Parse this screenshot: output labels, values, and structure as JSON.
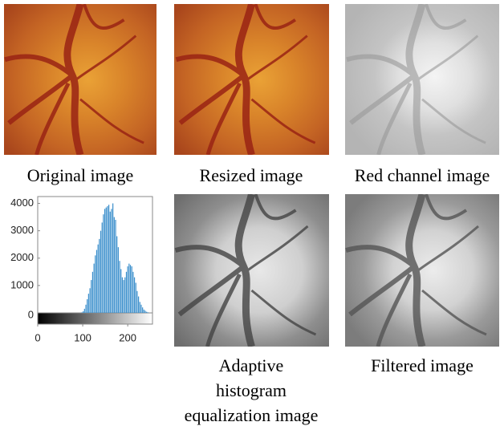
{
  "panels": [
    {
      "caption": "Original image"
    },
    {
      "caption": "Resized image"
    },
    {
      "caption": "Red channel image"
    },
    {
      "caption": [
        "Adaptive",
        "histogram",
        "equalization image"
      ]
    },
    {
      "caption": "Filtered image"
    }
  ],
  "chart_data": {
    "type": "stem",
    "x": [
      98,
      101,
      104,
      107,
      110,
      113,
      116,
      119,
      122,
      125,
      128,
      131,
      134,
      137,
      140,
      143,
      146,
      149,
      152,
      155,
      158,
      161,
      164,
      167,
      170,
      173,
      176,
      179,
      182,
      185,
      188,
      191,
      194,
      197,
      200,
      203,
      206,
      209,
      212,
      215,
      218,
      221,
      224,
      227,
      230,
      233,
      236,
      239,
      242,
      245
    ],
    "values": [
      20,
      60,
      150,
      300,
      500,
      700,
      900,
      1200,
      1500,
      1800,
      2100,
      2300,
      2500,
      2700,
      3000,
      3300,
      3600,
      3800,
      3850,
      3900,
      3950,
      3700,
      3800,
      4000,
      3500,
      3400,
      2800,
      2400,
      1900,
      1600,
      1300,
      1200,
      1300,
      1500,
      1700,
      1800,
      1750,
      1700,
      1500,
      1300,
      1100,
      800,
      600,
      400,
      300,
      200,
      120,
      80,
      40,
      20
    ],
    "color": "#3b8fcc",
    "xlim": [
      0,
      255
    ],
    "xticks": [
      0,
      100,
      200
    ],
    "ylim": [
      0,
      4250
    ],
    "yticks": [
      0,
      1000,
      2000,
      3000,
      4000
    ]
  }
}
